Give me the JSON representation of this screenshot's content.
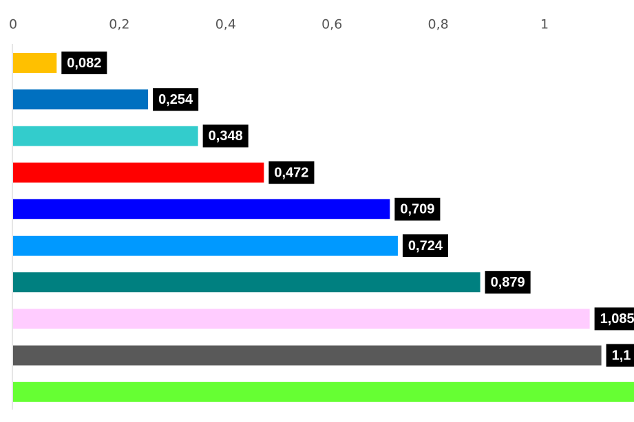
{
  "chart_data": {
    "type": "bar",
    "orientation": "horizontal",
    "title": "",
    "xlabel": "",
    "ylabel": "",
    "xlim": [
      0,
      1.16
    ],
    "ticks": [
      {
        "value": 0,
        "label": "0"
      },
      {
        "value": 0.2,
        "label": "0,2"
      },
      {
        "value": 0.4,
        "label": "0,4"
      },
      {
        "value": 0.6,
        "label": "0,6"
      },
      {
        "value": 0.8,
        "label": "0,8"
      },
      {
        "value": 1,
        "label": "1"
      }
    ],
    "tick_position": "top",
    "grid": false,
    "legend": "none",
    "bars": [
      {
        "value": 0.082,
        "label": "0,082",
        "color": "#FFC000"
      },
      {
        "value": 0.254,
        "label": "0,254",
        "color": "#0070C0"
      },
      {
        "value": 0.348,
        "label": "0,348",
        "color": "#33CCCC"
      },
      {
        "value": 0.472,
        "label": "0,472",
        "color": "#FF0000"
      },
      {
        "value": 0.709,
        "label": "0,709",
        "color": "#0000FF"
      },
      {
        "value": 0.724,
        "label": "0,724",
        "color": "#0099FF"
      },
      {
        "value": 0.879,
        "label": "0,879",
        "color": "#008080"
      },
      {
        "value": 1.085,
        "label": "1,085",
        "color": "#FFCCFF"
      },
      {
        "value": 1.107,
        "label": "1,1",
        "color": "#595959"
      },
      {
        "value": 1.2,
        "label": "",
        "color": "#66FF33"
      }
    ],
    "label_box_color": "#000000",
    "label_text_color": "#FFFFFF",
    "axis_color": "#E6E6E6"
  }
}
